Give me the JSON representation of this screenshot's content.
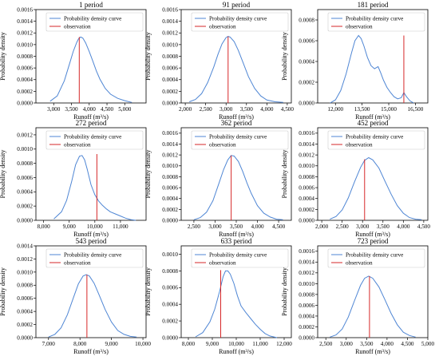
{
  "colors": {
    "density": "#4f86d4",
    "observation": "#d62728"
  },
  "chart_data": [
    {
      "type": "line",
      "title": "1 period",
      "xlabel": "Runoff (m³/s)",
      "ylabel": "Probability density",
      "xlim": [
        2500,
        5600
      ],
      "ylim": [
        0,
        0.0016
      ],
      "xticks": [
        3000,
        3500,
        4000,
        4500,
        5000
      ],
      "xtick_labels": [
        "3,000",
        "3,500",
        "4,000",
        "4,500",
        "5,000"
      ],
      "yticks": [
        0,
        0.0002,
        0.0004,
        0.0006,
        0.0008,
        0.001,
        0.0012,
        0.0014,
        0.0016
      ],
      "ytick_labels": [
        "0.0000",
        "0.0002",
        "0.0004",
        "0.0006",
        "0.0008",
        "0.0010",
        "0.0012",
        "0.0014",
        "0.0016"
      ],
      "legend": [
        "Probability density curve",
        "observation"
      ],
      "legend_position": "top-right",
      "observation": 3720,
      "series": [
        {
          "name": "Probability density curve",
          "x": [
            2900,
            3100,
            3300,
            3450,
            3550,
            3650,
            3700,
            3760,
            3820,
            3900,
            4000,
            4100,
            4200,
            4300,
            4450,
            4600,
            4800,
            5000,
            5200
          ],
          "y": [
            3e-05,
            0.00012,
            0.00038,
            0.00068,
            0.00088,
            0.00104,
            0.0011,
            0.00113,
            0.00111,
            0.00103,
            0.00088,
            0.00072,
            0.00055,
            0.00041,
            0.00025,
            0.00015,
            8e-05,
            4e-05,
            1e-05
          ]
        },
        {
          "name": "observation",
          "x": [
            3720,
            3720
          ],
          "y": [
            0,
            0.00113
          ]
        }
      ]
    },
    {
      "type": "line",
      "title": "91 period",
      "xlabel": "Runoff (m³/s)",
      "ylabel": "Probability density",
      "xlim": [
        1900,
        4600
      ],
      "ylim": [
        0,
        0.0016
      ],
      "xticks": [
        2000,
        2500,
        3000,
        3500,
        4000,
        4500
      ],
      "xtick_labels": [
        "2,000",
        "2,500",
        "3,000",
        "3,500",
        "4,000",
        "4,500"
      ],
      "yticks": [
        0,
        0.0002,
        0.0004,
        0.0006,
        0.0008,
        0.001,
        0.0012,
        0.0014,
        0.0016
      ],
      "ytick_labels": [
        "0.0000",
        "0.0002",
        "0.0004",
        "0.0006",
        "0.0008",
        "0.0010",
        "0.0012",
        "0.0014",
        "0.0016"
      ],
      "legend": [
        "Probability density curve",
        "observation"
      ],
      "legend_position": "top-right",
      "observation": 3050,
      "series": [
        {
          "name": "Probability density curve",
          "x": [
            2100,
            2250,
            2400,
            2550,
            2700,
            2800,
            2900,
            3000,
            3050,
            3100,
            3200,
            3300,
            3400,
            3550,
            3700,
            3850,
            4000,
            4200,
            4400
          ],
          "y": [
            2e-05,
            6e-05,
            0.00016,
            0.00035,
            0.00062,
            0.00083,
            0.00101,
            0.00112,
            0.00114,
            0.00113,
            0.00105,
            0.0009,
            0.00072,
            0.00045,
            0.00025,
            0.00012,
            5e-05,
            2e-05,
            1e-05
          ]
        },
        {
          "name": "observation",
          "x": [
            3050,
            3050
          ],
          "y": [
            0,
            0.00114
          ]
        }
      ]
    },
    {
      "type": "line",
      "title": "181 period",
      "xlabel": "Runoff (m³/s)",
      "ylabel": "Probability density",
      "xlim": [
        11000,
        17200
      ],
      "ylim": [
        0,
        0.0009
      ],
      "xticks": [
        12000,
        13500,
        15000,
        16500
      ],
      "xtick_labels": [
        "12,000",
        "13,500",
        "15,000",
        "16,500"
      ],
      "yticks": [
        0,
        0.0002,
        0.0004,
        0.0006,
        0.0008
      ],
      "ytick_labels": [
        "0.0000",
        "0.0002",
        "0.0004",
        "0.0006",
        "0.0008"
      ],
      "legend": [
        "Probability density curve",
        "observation"
      ],
      "legend_position": "top-right",
      "observation": 15850,
      "series": [
        {
          "name": "Probability density curve",
          "x": [
            11700,
            12000,
            12300,
            12600,
            12900,
            13100,
            13300,
            13450,
            13600,
            13800,
            14000,
            14200,
            14400,
            14550,
            14700,
            14900,
            15100,
            15300,
            15500,
            15700,
            15850,
            16000,
            16200,
            16400
          ],
          "y": [
            0.0,
            3e-05,
            0.00012,
            0.00028,
            0.00048,
            0.0006,
            0.00065,
            0.00062,
            0.00055,
            0.00044,
            0.00036,
            0.00033,
            0.00035,
            0.00029,
            0.00022,
            0.00015,
            0.0001,
            6e-05,
            4e-05,
            5e-05,
            0.0001,
            6e-05,
            2e-05,
            0.0
          ]
        },
        {
          "name": "observation",
          "x": [
            15850,
            15850
          ],
          "y": [
            0,
            0.00065
          ]
        }
      ]
    },
    {
      "type": "line",
      "title": "272 period",
      "xlabel": "Runoff (m³/s)",
      "ylabel": "Probability density",
      "xlim": [
        7700,
        12000
      ],
      "ylim": [
        0,
        0.0013
      ],
      "xticks": [
        8000,
        9000,
        10000,
        11000
      ],
      "xtick_labels": [
        "8,000",
        "9,000",
        "10,000",
        "11,000"
      ],
      "yticks": [
        0,
        0.0002,
        0.0004,
        0.0006,
        0.0008,
        0.001,
        0.0012
      ],
      "ytick_labels": [
        "0.0000",
        "0.0002",
        "0.0004",
        "0.0006",
        "0.0008",
        "0.0010",
        "0.0012"
      ],
      "legend": [
        "Probability density curve",
        "observation"
      ],
      "legend_position": "top-right",
      "observation": 10080,
      "series": [
        {
          "name": "Probability density curve",
          "x": [
            8400,
            8700,
            8900,
            9100,
            9250,
            9400,
            9500,
            9600,
            9700,
            9850,
            10000,
            10150,
            10300,
            10450,
            10600,
            10800,
            11000,
            11200,
            11400,
            11600
          ],
          "y": [
            2e-05,
            0.00012,
            0.00028,
            0.00055,
            0.00078,
            0.0009,
            0.00091,
            0.00085,
            0.00072,
            0.0005,
            0.00036,
            0.00027,
            0.00021,
            0.00016,
            0.00012,
            9e-05,
            6e-05,
            3e-05,
            1e-05,
            0.0
          ]
        },
        {
          "name": "observation",
          "x": [
            10080,
            10080
          ],
          "y": [
            0,
            0.00093
          ]
        }
      ]
    },
    {
      "type": "line",
      "title": "362 period",
      "xlabel": "Runoff (m³/s)",
      "ylabel": "Probability density",
      "xlim": [
        2200,
        4800
      ],
      "ylim": [
        0,
        0.0017
      ],
      "xticks": [
        2500,
        3000,
        3500,
        4000,
        4500
      ],
      "xtick_labels": [
        "2,500",
        "3,000",
        "3,500",
        "4,000",
        "4,500"
      ],
      "yticks": [
        0,
        0.0002,
        0.0004,
        0.0006,
        0.0008,
        0.001,
        0.0012,
        0.0014,
        0.0016
      ],
      "ytick_labels": [
        "0.0000",
        "0.0002",
        "0.0004",
        "0.0006",
        "0.0008",
        "0.0010",
        "0.0012",
        "0.0014",
        "0.0016"
      ],
      "legend": [
        "Probability density curve",
        "observation"
      ],
      "legend_position": "top-right",
      "observation": 3380,
      "series": [
        {
          "name": "Probability density curve",
          "x": [
            2500,
            2650,
            2800,
            2950,
            3100,
            3200,
            3300,
            3380,
            3450,
            3550,
            3650,
            3750,
            3850,
            4000,
            4150,
            4300,
            4450,
            4600
          ],
          "y": [
            1e-05,
            5e-05,
            0.00015,
            0.00036,
            0.0007,
            0.00093,
            0.00111,
            0.00119,
            0.00118,
            0.00108,
            0.0009,
            0.00069,
            0.0005,
            0.00027,
            0.00013,
            6e-05,
            2e-05,
            1e-05
          ]
        },
        {
          "name": "observation",
          "x": [
            3380,
            3380
          ],
          "y": [
            0,
            0.00119
          ]
        }
      ]
    },
    {
      "type": "line",
      "title": "452 period",
      "xlabel": "Runoff (m³/s)",
      "ylabel": "Probability density",
      "xlim": [
        1900,
        4600
      ],
      "ylim": [
        0,
        0.0017
      ],
      "xticks": [
        2000,
        2500,
        3000,
        3500,
        4000,
        4500
      ],
      "xtick_labels": [
        "2,000",
        "2,500",
        "3,000",
        "3,500",
        "4,000",
        "4,500"
      ],
      "yticks": [
        0,
        0.0002,
        0.0004,
        0.0006,
        0.0008,
        0.001,
        0.0012,
        0.0014,
        0.0016
      ],
      "ytick_labels": [
        "0.0000",
        "0.0002",
        "0.0004",
        "0.0006",
        "0.0008",
        "0.0010",
        "0.0012",
        "0.0014",
        "0.0016"
      ],
      "legend": [
        "Probability density curve",
        "observation"
      ],
      "legend_position": "top-right",
      "observation": 3050,
      "series": [
        {
          "name": "Probability density curve",
          "x": [
            2200,
            2350,
            2500,
            2650,
            2800,
            2950,
            3050,
            3150,
            3250,
            3400,
            3550,
            3700,
            3850,
            4000,
            4150,
            4300,
            4450
          ],
          "y": [
            2e-05,
            7e-05,
            0.00019,
            0.00041,
            0.0007,
            0.00097,
            0.0011,
            0.00115,
            0.00111,
            0.00096,
            0.00072,
            0.00048,
            0.00027,
            0.00013,
            5e-05,
            2e-05,
            1e-05
          ]
        },
        {
          "name": "observation",
          "x": [
            3050,
            3050
          ],
          "y": [
            0,
            0.00112
          ]
        }
      ]
    },
    {
      "type": "line",
      "title": "543 period",
      "xlabel": "Runoff (m³/s)",
      "ylabel": "Probability density",
      "xlim": [
        6600,
        10100
      ],
      "ylim": [
        0,
        0.0014
      ],
      "xticks": [
        7000,
        8000,
        9000,
        10000
      ],
      "xtick_labels": [
        "7,000",
        "8,000",
        "9,000",
        "10,000"
      ],
      "yticks": [
        0,
        0.0002,
        0.0004,
        0.0006,
        0.0008,
        0.001,
        0.0012,
        0.0014
      ],
      "ytick_labels": [
        "0.0000",
        "0.0002",
        "0.0004",
        "0.0006",
        "0.0008",
        "0.0010",
        "0.0012",
        "0.0014"
      ],
      "legend": [
        "Probability density curve",
        "observation"
      ],
      "legend_position": "top-right",
      "observation": 8220,
      "series": [
        {
          "name": "Probability density curve",
          "x": [
            7000,
            7200,
            7400,
            7600,
            7800,
            7950,
            8100,
            8200,
            8300,
            8450,
            8600,
            8800,
            9000,
            9200,
            9400,
            9600,
            9800
          ],
          "y": [
            1e-05,
            5e-05,
            0.00015,
            0.00035,
            0.00062,
            0.00082,
            0.00094,
            0.00096,
            0.00094,
            0.00083,
            0.00066,
            0.00043,
            0.00024,
            0.00011,
            5e-05,
            2e-05,
            1e-05
          ]
        },
        {
          "name": "observation",
          "x": [
            8220,
            8220
          ],
          "y": [
            0,
            0.00096
          ]
        }
      ]
    },
    {
      "type": "line",
      "title": "633 period",
      "xlabel": "Runoff (m³/s)",
      "ylabel": "Probability density",
      "xlim": [
        7700,
        12300
      ],
      "ylim": [
        0,
        0.0011
      ],
      "xticks": [
        8000,
        9000,
        10000,
        11000,
        12000
      ],
      "xtick_labels": [
        "8,000",
        "9,000",
        "10,000",
        "11,000",
        "12,000"
      ],
      "yticks": [
        0,
        0.0002,
        0.0004,
        0.0006,
        0.0008,
        0.001
      ],
      "ytick_labels": [
        "0.0000",
        "0.0002",
        "0.0004",
        "0.0006",
        "0.0008",
        "0.0010"
      ],
      "legend": [
        "Probability density curve",
        "observation"
      ],
      "legend_position": "top-right",
      "observation": 9350,
      "series": [
        {
          "name": "Probability density curve",
          "x": [
            8300,
            8600,
            8900,
            9100,
            9300,
            9450,
            9550,
            9650,
            9750,
            9900,
            10050,
            10200,
            10400,
            10600,
            10800,
            11000,
            11200,
            11400,
            11700
          ],
          "y": [
            1e-05,
            6e-05,
            0.00019,
            0.00034,
            0.00055,
            0.00073,
            0.0008,
            0.0008,
            0.00076,
            0.00065,
            0.0005,
            0.00038,
            0.0003,
            0.00023,
            0.00016,
            0.0001,
            5e-05,
            2e-05,
            0.0
          ]
        },
        {
          "name": "observation",
          "x": [
            9350,
            9350
          ],
          "y": [
            0,
            0.00081
          ]
        }
      ]
    },
    {
      "type": "line",
      "title": "723 period",
      "xlabel": "Runoff (m³/s)",
      "ylabel": "Probability density",
      "xlim": [
        2300,
        5000
      ],
      "ylim": [
        0,
        0.0017
      ],
      "xticks": [
        2500,
        3000,
        3500,
        4000,
        4500,
        5000
      ],
      "xtick_labels": [
        "2,500",
        "3,000",
        "3,500",
        "4,000",
        "4,500",
        "5,000"
      ],
      "yticks": [
        0,
        0.0002,
        0.0004,
        0.0006,
        0.0008,
        0.001,
        0.0012,
        0.0014,
        0.0016
      ],
      "ytick_labels": [
        "0.0000",
        "0.0002",
        "0.0004",
        "0.0006",
        "0.0008",
        "0.0010",
        "0.0012",
        "0.0014",
        "0.0016"
      ],
      "legend": [
        "Probability density curve",
        "observation"
      ],
      "legend_position": "top-right",
      "observation": 3570,
      "series": [
        {
          "name": "Probability density curve",
          "x": [
            2600,
            2750,
            2900,
            3050,
            3200,
            3350,
            3450,
            3550,
            3650,
            3800,
            3950,
            4100,
            4250,
            4400,
            4550,
            4700
          ],
          "y": [
            1e-05,
            5e-05,
            0.00016,
            0.00038,
            0.00068,
            0.00097,
            0.0011,
            0.00114,
            0.0011,
            0.00094,
            0.0007,
            0.00045,
            0.00024,
            0.0001,
            4e-05,
            1e-05
          ]
        },
        {
          "name": "observation",
          "x": [
            3570,
            3570
          ],
          "y": [
            0,
            0.00114
          ]
        }
      ]
    }
  ]
}
